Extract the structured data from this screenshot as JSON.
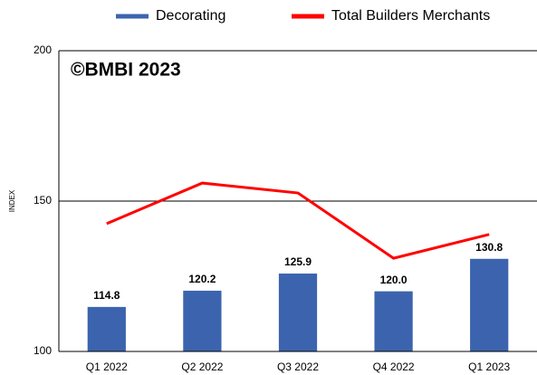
{
  "chart_data": {
    "type": "bar",
    "annotation": "©BMBI 2023",
    "y_label": "INDEX",
    "categories": [
      "Q1 2022",
      "Q2 2022",
      "Q3 2022",
      "Q4 2022",
      "Q1 2023"
    ],
    "series": [
      {
        "name": "Decorating",
        "type": "bar",
        "color": "#3c64ae",
        "values": [
          114.8,
          120.2,
          125.9,
          120.0,
          130.8
        ],
        "value_labels": [
          "114.8",
          "120.2",
          "125.9",
          "120.0",
          "130.8"
        ]
      },
      {
        "name": "Total Builders Merchants",
        "type": "line",
        "color": "#ff0000",
        "values": [
          142.5,
          156,
          152.7,
          131,
          138.9
        ]
      }
    ],
    "ylim": [
      100,
      200
    ],
    "yticks": [
      100,
      150,
      200
    ],
    "grid": true,
    "legend": "top"
  }
}
